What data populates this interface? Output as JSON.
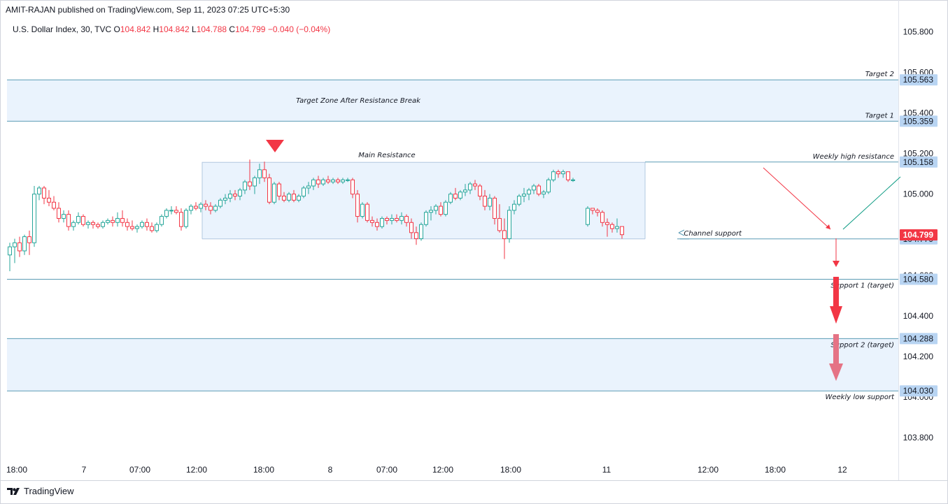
{
  "header": {
    "published": "AMIT-RAJAN published on TradingView.com, Sep 11, 2023 07:25 UTC+5:30"
  },
  "legend": {
    "symbol": "U.S. Dollar Index, 30, TVC",
    "open_label": "O",
    "open": "104.842",
    "high_label": "H",
    "high": "104.842",
    "low_label": "L",
    "low": "104.788",
    "close_label": "C",
    "close": "104.799",
    "change": "−0.040 (−0.04%)"
  },
  "footer": {
    "brand": "TradingView"
  },
  "colors": {
    "up": "#26a69a",
    "down": "#f23645",
    "line": "#5b9cb5",
    "zone": "#e3effc",
    "label_bg": "#b8d4f2",
    "price_bg": "#f23645",
    "arrow_red": "#f23645",
    "arrow_pink": "#e57385",
    "trend_green": "#089981"
  },
  "chart_data": {
    "type": "candlestick",
    "symbol": "U.S. Dollar Index",
    "interval": "30",
    "ylim": [
      103.7,
      105.86
    ],
    "yticks": [
      "105.800",
      "105.600",
      "105.400",
      "105.200",
      "105.000",
      "104.800",
      "104.600",
      "104.400",
      "104.200",
      "104.000",
      "103.800"
    ],
    "xticks": [
      "18:00",
      "7",
      "07:00",
      "12:00",
      "18:00",
      "8",
      "07:00",
      "12:00",
      "18:00",
      "11",
      "12:00",
      "18:00",
      "12"
    ],
    "candles": [
      [
        104.7,
        104.76,
        104.62,
        104.74
      ],
      [
        104.74,
        104.78,
        104.66,
        104.76
      ],
      [
        104.76,
        104.79,
        104.69,
        104.72
      ],
      [
        104.72,
        104.8,
        104.7,
        104.79
      ],
      [
        104.79,
        104.82,
        104.7,
        104.76
      ],
      [
        104.76,
        105.04,
        104.74,
        105.0
      ],
      [
        105.0,
        105.04,
        104.97,
        105.03
      ],
      [
        105.03,
        105.04,
        104.95,
        104.98
      ],
      [
        104.98,
        105.02,
        104.94,
        104.96
      ],
      [
        104.96,
        104.99,
        104.92,
        104.93
      ],
      [
        104.93,
        104.96,
        104.86,
        104.88
      ],
      [
        104.88,
        104.92,
        104.86,
        104.9
      ],
      [
        104.9,
        104.92,
        104.82,
        104.84
      ],
      [
        104.84,
        104.87,
        104.82,
        104.86
      ],
      [
        104.86,
        104.91,
        104.85,
        104.89
      ],
      [
        104.89,
        104.9,
        104.84,
        104.85
      ],
      [
        104.85,
        104.87,
        104.83,
        104.86
      ],
      [
        104.86,
        104.87,
        104.83,
        104.85
      ],
      [
        104.85,
        104.86,
        104.83,
        104.84
      ],
      [
        104.84,
        104.87,
        104.83,
        104.86
      ],
      [
        104.86,
        104.88,
        104.85,
        104.87
      ],
      [
        104.87,
        104.89,
        104.84,
        104.86
      ],
      [
        104.86,
        104.91,
        104.84,
        104.88
      ],
      [
        104.88,
        104.92,
        104.84,
        104.86
      ],
      [
        104.86,
        104.88,
        104.82,
        104.84
      ],
      [
        104.84,
        104.87,
        104.82,
        104.83
      ],
      [
        104.83,
        104.85,
        104.81,
        104.84
      ],
      [
        104.84,
        104.87,
        104.83,
        104.86
      ],
      [
        104.86,
        104.88,
        104.82,
        104.84
      ],
      [
        104.84,
        104.86,
        104.81,
        104.82
      ],
      [
        104.82,
        104.86,
        104.81,
        104.85
      ],
      [
        104.85,
        104.9,
        104.84,
        104.89
      ],
      [
        104.89,
        104.93,
        104.88,
        104.92
      ],
      [
        104.92,
        104.94,
        104.9,
        104.92
      ],
      [
        104.92,
        104.94,
        104.9,
        104.91
      ],
      [
        104.91,
        104.93,
        104.82,
        104.84
      ],
      [
        104.84,
        104.93,
        104.83,
        104.92
      ],
      [
        104.92,
        104.95,
        104.9,
        104.94
      ],
      [
        104.94,
        104.96,
        104.92,
        104.93
      ],
      [
        104.93,
        104.96,
        104.91,
        104.95
      ],
      [
        104.95,
        104.97,
        104.92,
        104.94
      ],
      [
        104.94,
        104.96,
        104.9,
        104.92
      ],
      [
        104.92,
        104.95,
        104.91,
        104.94
      ],
      [
        104.94,
        104.98,
        104.93,
        104.97
      ],
      [
        104.97,
        105.0,
        104.95,
        104.98
      ],
      [
        104.98,
        105.02,
        104.96,
        105.0
      ],
      [
        105.0,
        105.02,
        104.97,
        104.99
      ],
      [
        104.99,
        105.03,
        104.97,
        105.02
      ],
      [
        105.02,
        105.07,
        105.0,
        105.06
      ],
      [
        105.06,
        105.17,
        105.02,
        105.04
      ],
      [
        105.04,
        105.09,
        105.0,
        105.08
      ],
      [
        105.08,
        105.15,
        105.05,
        105.12
      ],
      [
        105.12,
        105.16,
        105.06,
        105.08
      ],
      [
        105.08,
        105.1,
        104.95,
        104.96
      ],
      [
        104.96,
        105.06,
        104.95,
        105.05
      ],
      [
        105.05,
        105.06,
        104.97,
        104.99
      ],
      [
        104.99,
        105.01,
        104.96,
        104.97
      ],
      [
        104.97,
        105.01,
        104.96,
        105.0
      ],
      [
        105.0,
        105.02,
        104.96,
        104.97
      ],
      [
        104.97,
        105.0,
        104.96,
        104.99
      ],
      [
        104.99,
        105.04,
        104.98,
        105.03
      ],
      [
        105.03,
        105.06,
        105.0,
        105.04
      ],
      [
        105.04,
        105.08,
        105.02,
        105.07
      ],
      [
        105.07,
        105.09,
        105.03,
        105.05
      ],
      [
        105.05,
        105.08,
        105.04,
        105.07
      ],
      [
        105.07,
        105.09,
        105.05,
        105.06
      ],
      [
        105.06,
        105.08,
        105.05,
        105.07
      ],
      [
        105.07,
        105.08,
        105.05,
        105.06
      ],
      [
        105.06,
        105.08,
        105.05,
        105.07
      ],
      [
        105.07,
        105.08,
        105.06,
        105.07
      ],
      [
        105.07,
        105.08,
        104.98,
        105.0
      ],
      [
        105.0,
        105.02,
        104.86,
        104.89
      ],
      [
        104.89,
        104.96,
        104.88,
        104.95
      ],
      [
        104.95,
        104.96,
        104.86,
        104.87
      ],
      [
        104.87,
        104.89,
        104.84,
        104.86
      ],
      [
        104.86,
        104.88,
        104.82,
        104.84
      ],
      [
        104.84,
        104.89,
        104.83,
        104.88
      ],
      [
        104.88,
        104.89,
        104.85,
        104.87
      ],
      [
        104.87,
        104.9,
        104.85,
        104.88
      ],
      [
        104.88,
        104.9,
        104.86,
        104.87
      ],
      [
        104.87,
        104.91,
        104.85,
        104.89
      ],
      [
        104.89,
        104.9,
        104.84,
        104.86
      ],
      [
        104.86,
        104.88,
        104.78,
        104.81
      ],
      [
        104.81,
        104.84,
        104.75,
        104.78
      ],
      [
        104.78,
        104.86,
        104.77,
        104.85
      ],
      [
        104.85,
        104.92,
        104.84,
        104.91
      ],
      [
        104.91,
        104.94,
        104.87,
        104.92
      ],
      [
        104.92,
        104.95,
        104.9,
        104.94
      ],
      [
        104.94,
        104.96,
        104.89,
        104.9
      ],
      [
        104.9,
        104.97,
        104.89,
        104.96
      ],
      [
        104.96,
        105.01,
        104.95,
        105.0
      ],
      [
        105.0,
        105.03,
        104.97,
        104.98
      ],
      [
        104.98,
        105.02,
        104.97,
        105.01
      ],
      [
        105.01,
        105.05,
        104.99,
        105.02
      ],
      [
        105.02,
        105.06,
        105.0,
        105.05
      ],
      [
        105.05,
        105.07,
        105.02,
        105.04
      ],
      [
        105.04,
        105.05,
        104.97,
        104.99
      ],
      [
        104.99,
        105.02,
        104.92,
        104.94
      ],
      [
        104.94,
        105.0,
        104.92,
        104.98
      ],
      [
        104.98,
        104.99,
        104.85,
        104.88
      ],
      [
        104.88,
        104.95,
        104.81,
        104.82
      ],
      [
        104.82,
        104.88,
        104.68,
        104.78
      ],
      [
        104.78,
        104.94,
        104.76,
        104.92
      ],
      [
        104.92,
        104.97,
        104.9,
        104.95
      ],
      [
        104.95,
        105.0,
        104.94,
        104.99
      ],
      [
        104.99,
        105.03,
        104.96,
        105.0
      ],
      [
        105.0,
        105.03,
        104.97,
        105.02
      ],
      [
        105.02,
        105.05,
        105.0,
        105.04
      ],
      [
        105.04,
        105.05,
        104.99,
        105.0
      ],
      [
        105.0,
        105.02,
        104.98,
        105.01
      ],
      [
        105.01,
        105.08,
        105.0,
        105.07
      ],
      [
        105.07,
        105.12,
        105.06,
        105.11
      ],
      [
        105.11,
        105.12,
        105.08,
        105.1
      ],
      [
        105.1,
        105.12,
        105.08,
        105.11
      ],
      [
        105.11,
        105.11,
        105.06,
        105.07
      ],
      [
        105.07,
        105.08,
        105.06,
        105.07
      ],
      null,
      null,
      [
        104.85,
        104.94,
        104.84,
        104.93
      ],
      [
        104.93,
        104.93,
        104.9,
        104.92
      ],
      [
        104.92,
        104.93,
        104.89,
        104.91
      ],
      [
        104.91,
        104.92,
        104.84,
        104.86
      ],
      [
        104.86,
        104.88,
        104.79,
        104.85
      ],
      [
        104.85,
        104.86,
        104.81,
        104.83
      ],
      [
        104.83,
        104.88,
        104.81,
        104.84
      ],
      [
        104.84,
        104.84,
        104.78,
        104.8
      ]
    ],
    "levels": [
      {
        "label": "Target 2",
        "price": "105.563"
      },
      {
        "label": "Target 1",
        "price": "105.359"
      },
      {
        "label": "Weekly high resistance",
        "price": "105.158"
      },
      {
        "label": "Channel support",
        "price": "104.779"
      },
      {
        "label": "Support 1 (target)",
        "price": "104.580"
      },
      {
        "label": "Support 2 (target)",
        "price": "104.288"
      },
      {
        "label": "Weekly low support",
        "price": "104.030"
      }
    ],
    "zones": [
      {
        "label": "Target Zone After Resistance Break",
        "from": 105.359,
        "to": 105.563
      },
      {
        "label": "Main Resistance",
        "from": 104.779,
        "to": 105.158
      },
      {
        "label": "",
        "from": 104.03,
        "to": 104.288
      }
    ],
    "last_price": "104.799"
  }
}
